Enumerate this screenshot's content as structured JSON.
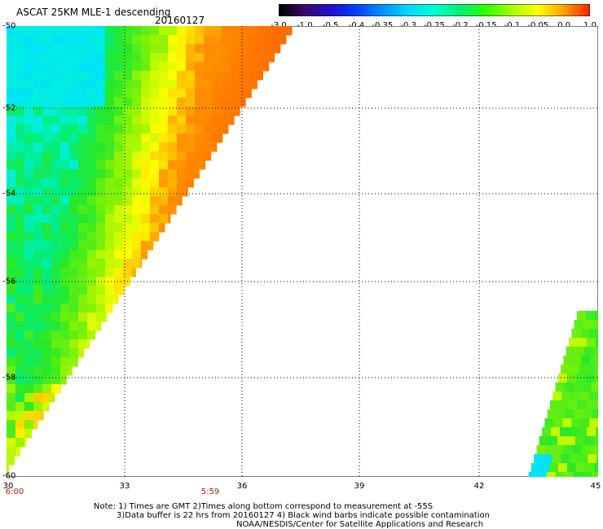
{
  "header": {
    "title": "ASCAT 25KM MLE-1 descending",
    "date": "20160127"
  },
  "colorbar": {
    "labels": [
      "-3.0",
      "-1.0",
      "-0.5",
      "-0.4",
      "-0.35",
      "-0.3",
      "-0.25",
      "-0.2",
      "-0.15",
      "-0.1",
      "-0.05",
      "0.0",
      "1.0"
    ],
    "colors": [
      "#000000",
      "#3a0a6e",
      "#2010c8",
      "#0040ff",
      "#0090ff",
      "#00d8ff",
      "#00ffd0",
      "#00f070",
      "#30ff00",
      "#a8ff00",
      "#ffff00",
      "#ffa000",
      "#ff2000"
    ]
  },
  "map": {
    "lat_labels": [
      "-50",
      "-52",
      "-54",
      "-56",
      "-58",
      "-60"
    ],
    "lon_labels": [
      "30",
      "33",
      "36",
      "39",
      "42",
      "45"
    ],
    "time_labels": [
      "6:00",
      "5:59"
    ],
    "lat_range": [
      -60,
      -50
    ],
    "lon_range": [
      30,
      45
    ]
  },
  "notes": {
    "line1": "Note: 1) Times are GMT 2)Times along bottom correspond to measurement at -55S",
    "line2": "3)Data buffer is 22 hrs from 20160127 4) Black wind barbs indicate possible contamination",
    "line3": "NOAA/NESDIS/Center for Satellite Applications and Research"
  }
}
